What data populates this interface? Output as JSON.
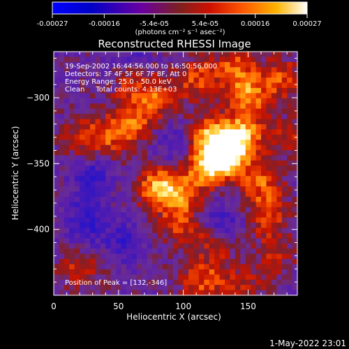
{
  "chart_data": {
    "type": "heatmap",
    "title": "Reconstructed RHESSI Image",
    "xlabel": "Heliocentric X (arcsec)",
    "ylabel": "Heliocentric Y (arcsec)",
    "xlim": [
      0,
      188
    ],
    "ylim": [
      -450,
      -265
    ],
    "x_ticks": [
      0,
      50,
      100,
      150
    ],
    "y_ticks": [
      -300,
      -350,
      -400
    ],
    "annotations": [
      "19-Sep-2002 16:44:56.000 to 16:50:56.000",
      "Detectors: 3F 4F 5F 6F 7F 8F, Att 0",
      "Energy Range: 25.0 - 50.0 keV",
      "Clean     Total counts: 4.13E+03"
    ],
    "peak_label": "Position of Peak = [132,-346]",
    "peak": [
      132,
      -346
    ],
    "colorbar": {
      "ticks": [
        "-0.00027",
        "-0.00016",
        "-5.4e-05",
        "5.4e-05",
        "0.00016",
        "0.00027"
      ],
      "range": [
        -0.00027,
        0.00027
      ],
      "unit_label": "(photons cm⁻² s⁻¹ asec⁻²)"
    },
    "blobs": [
      {
        "x": 132,
        "y": -346,
        "v": 1.0
      },
      {
        "x": 145,
        "y": -330,
        "v": 0.85
      },
      {
        "x": 120,
        "y": -330,
        "v": 0.75
      },
      {
        "x": 115,
        "y": -355,
        "v": 0.6
      },
      {
        "x": 150,
        "y": -300,
        "v": 0.65
      },
      {
        "x": 160,
        "y": -365,
        "v": 0.55
      },
      {
        "x": 165,
        "y": -390,
        "v": 0.45
      },
      {
        "x": 80,
        "y": -368,
        "v": 0.7
      },
      {
        "x": 95,
        "y": -375,
        "v": 0.6
      },
      {
        "x": 60,
        "y": -320,
        "v": 0.55
      },
      {
        "x": 40,
        "y": -330,
        "v": 0.45
      },
      {
        "x": 20,
        "y": -330,
        "v": 0.35
      },
      {
        "x": 80,
        "y": -300,
        "v": 0.5
      },
      {
        "x": 60,
        "y": -290,
        "v": 0.4
      },
      {
        "x": 110,
        "y": -285,
        "v": 0.5
      },
      {
        "x": 140,
        "y": -278,
        "v": 0.55
      },
      {
        "x": 175,
        "y": -285,
        "v": 0.5
      },
      {
        "x": 180,
        "y": -330,
        "v": 0.35
      },
      {
        "x": 100,
        "y": -400,
        "v": 0.4
      },
      {
        "x": 125,
        "y": -410,
        "v": 0.35
      },
      {
        "x": 20,
        "y": -430,
        "v": 0.4
      },
      {
        "x": 110,
        "y": -440,
        "v": 0.35
      },
      {
        "x": 125,
        "y": -438,
        "v": 0.3
      },
      {
        "x": 170,
        "y": -420,
        "v": 0.35
      },
      {
        "x": 150,
        "y": -445,
        "v": 0.3
      },
      {
        "x": 30,
        "y": -360,
        "v": -0.4
      },
      {
        "x": 25,
        "y": -395,
        "v": -0.45
      },
      {
        "x": 55,
        "y": -410,
        "v": -0.35
      },
      {
        "x": 130,
        "y": -395,
        "v": -0.4
      },
      {
        "x": 95,
        "y": -335,
        "v": -0.3
      },
      {
        "x": 60,
        "y": -270,
        "v": -0.25
      }
    ]
  },
  "footer": {
    "timestamp": "1-May-2022 23:01"
  }
}
